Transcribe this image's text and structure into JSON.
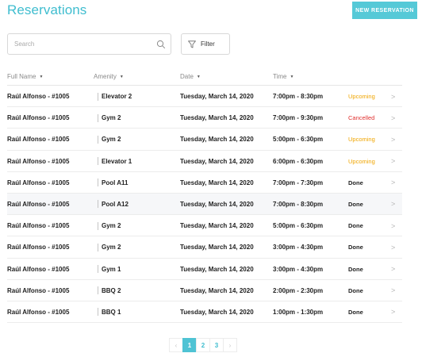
{
  "header": {
    "title": "Reservations",
    "new_button_label": "NEW RESERVATION"
  },
  "toolbar": {
    "search_placeholder": "Search",
    "filter_label": "Filter"
  },
  "table": {
    "columns": [
      "Full Name",
      "Amenity",
      "Date",
      "Time"
    ],
    "rows": [
      {
        "name": "Raúl Alfonso - #1005",
        "amenity": "Elevator 2",
        "date": "Tuesday, March 14, 2020",
        "time": "7:00pm - 8:30pm",
        "status": "Upcoming"
      },
      {
        "name": "Raúl Alfonso - #1005",
        "amenity": "Gym 2",
        "date": "Tuesday, March 14, 2020",
        "time": "7:00pm - 9:30pm",
        "status": "Cancelled"
      },
      {
        "name": "Raúl Alfonso - #1005",
        "amenity": "Gym 2",
        "date": "Tuesday, March 14, 2020",
        "time": "5:00pm - 6:30pm",
        "status": "Upcoming"
      },
      {
        "name": "Raúl Alfonso - #1005",
        "amenity": "Elevator 1",
        "date": "Tuesday, March 14, 2020",
        "time": "6:00pm - 6:30pm",
        "status": "Upcoming"
      },
      {
        "name": "Raúl Alfonso - #1005",
        "amenity": "Pool A11",
        "date": "Tuesday, March 14, 2020",
        "time": "7:00pm - 7:30pm",
        "status": "Done"
      },
      {
        "name": "Raúl Alfonso - #1005",
        "amenity": "Pool A12",
        "date": "Tuesday, March 14, 2020",
        "time": "7:00pm - 8:30pm",
        "status": "Done"
      },
      {
        "name": "Raúl Alfonso - #1005",
        "amenity": "Gym 2",
        "date": "Tuesday, March 14, 2020",
        "time": "5:00pm - 6:30pm",
        "status": "Done"
      },
      {
        "name": "Raúl Alfonso - #1005",
        "amenity": "Gym 2",
        "date": "Tuesday, March 14, 2020",
        "time": "3:00pm - 4:30pm",
        "status": "Done"
      },
      {
        "name": "Raúl Alfonso - #1005",
        "amenity": "Gym 1",
        "date": "Tuesday, March 14, 2020",
        "time": "3:00pm - 4:30pm",
        "status": "Done"
      },
      {
        "name": "Raúl Alfonso - #1005",
        "amenity": "BBQ 2",
        "date": "Tuesday, March 14, 2020",
        "time": "2:00pm - 2:30pm",
        "status": "Done"
      },
      {
        "name": "Raúl Alfonso - #1005",
        "amenity": "BBQ 1",
        "date": "Tuesday, March 14, 2020",
        "time": "1:00pm - 1:30pm",
        "status": "Done"
      }
    ],
    "highlighted_row": 5
  },
  "pagination": {
    "pages": [
      "1",
      "2",
      "3"
    ],
    "current": "1",
    "prev_icon": "chevron-left-icon",
    "next_icon": "chevron-right-icon"
  },
  "colors": {
    "accent": "#3fbdcf",
    "button": "#55c9d7",
    "upcoming": "#f0a500",
    "cancelled": "#e0302f",
    "done": "#222222"
  },
  "icons": {
    "search": "search-icon",
    "filter": "filter-icon",
    "sort": "caret-down-icon",
    "row_action": "chevron-right-icon"
  }
}
